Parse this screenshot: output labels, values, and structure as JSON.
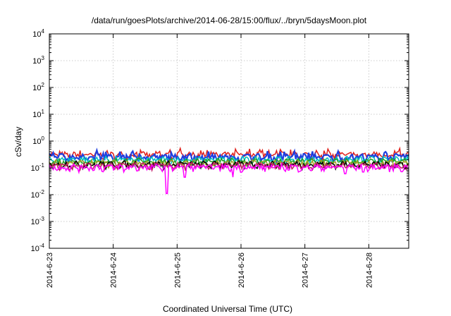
{
  "chart_data": {
    "type": "line",
    "title": "/data/run/goesPlots/archive/2014-06-28/15:00/flux/../bryn/5daysMoon.plot",
    "xlabel": "Coordinated Universal Time (UTC)",
    "ylabel": "cSv/day",
    "yscale": "log",
    "ylim": [
      0.0001,
      10000
    ],
    "xlim": [
      "2014-06-23 00:00",
      "2014-06-28 15:00"
    ],
    "grid": true,
    "legend": "none",
    "x_ticks": [
      "2014-6-23",
      "2014-6-24",
      "2014-6-25",
      "2014-6-26",
      "2014-6-27",
      "2014-6-28"
    ],
    "y_ticks": [
      {
        "base": "10",
        "exp": "-4",
        "value": 0.0001
      },
      {
        "base": "10",
        "exp": "-3",
        "value": 0.001
      },
      {
        "base": "10",
        "exp": "-2",
        "value": 0.01
      },
      {
        "base": "10",
        "exp": "-1",
        "value": 0.1
      },
      {
        "base": "10",
        "exp": "0",
        "value": 1
      },
      {
        "base": "10",
        "exp": "1",
        "value": 10
      },
      {
        "base": "10",
        "exp": "2",
        "value": 100
      },
      {
        "base": "10",
        "exp": "3",
        "value": 1000
      },
      {
        "base": "10",
        "exp": "4",
        "value": 10000
      }
    ],
    "series": [
      {
        "color": "#e0201b",
        "baseline": 0.3
      },
      {
        "color": "#1f3fe0",
        "baseline": 0.25
      },
      {
        "color": "#00c0c0",
        "baseline": 0.2
      },
      {
        "color": "#20a020",
        "baseline": 0.17
      },
      {
        "color": "#a0a020",
        "baseline": 0.15
      },
      {
        "color": "#000000",
        "baseline": 0.135
      },
      {
        "color": "#c02060",
        "baseline": 0.12
      },
      {
        "color": "#ff00ff",
        "baseline": 0.105,
        "dips": [
          {
            "x": "2014-06-24 20:00",
            "y": 0.011
          },
          {
            "x": "2014-06-25 03:00",
            "y": 0.045
          },
          {
            "x": "2014-06-25 21:00",
            "y": 0.045
          },
          {
            "x": "2014-06-24 04:00",
            "y": 0.07
          },
          {
            "x": "2014-06-27 22:00",
            "y": 0.07
          },
          {
            "x": "2014-06-27 15:00",
            "y": 0.06
          }
        ]
      }
    ]
  }
}
